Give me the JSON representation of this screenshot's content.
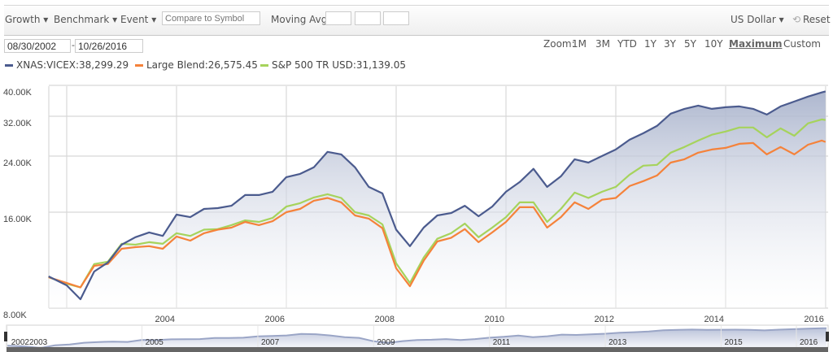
{
  "toolbar": {
    "growth": "Growth ▾",
    "benchmark": "Benchmark ▾",
    "event": "Event ▾",
    "compare_placeholder": "Compare to Symbol",
    "moving_avg": "Moving Avg",
    "currency": "US Dollar ▾",
    "reset": "Reset"
  },
  "dates": {
    "start": "08/30/2002",
    "separator": "-",
    "end": "10/26/2016"
  },
  "zoom": {
    "label": "Zoom:",
    "options": [
      "1M",
      "3M",
      "YTD",
      "1Y",
      "3Y",
      "5Y",
      "10Y",
      "Maximum",
      "Custom"
    ],
    "active": "Maximum"
  },
  "legend": [
    {
      "label": "XNAS:VICEX:38,299.29",
      "color": "#4b5b8e"
    },
    {
      "label": "Large Blend:26,575.45",
      "color": "#f5823a"
    },
    {
      "label": "S&P 500 TR USD:31,139.05",
      "color": "#a6d35c"
    }
  ],
  "chart_data": {
    "type": "line",
    "title": "",
    "xlabel": "",
    "ylabel": "",
    "yscale": "log",
    "ylim": [
      8000,
      40000
    ],
    "yticks": [
      8000,
      16000,
      24000,
      32000,
      40000
    ],
    "ytick_labels": [
      "8.00K",
      "16.00K",
      "24.00K",
      "32.00K",
      "40.00K"
    ],
    "xlim": [
      2002.66,
      2016.82
    ],
    "xticks": [
      2005,
      2007,
      2009,
      2011,
      2013,
      2015,
      2016.82
    ],
    "xtick_labels": [
      "2004",
      "2006",
      "2008",
      "2010",
      "2012",
      "2014",
      "2016"
    ],
    "grid": true,
    "x": [
      2002.67,
      2003.0,
      2003.25,
      2003.5,
      2003.75,
      2004.0,
      2004.25,
      2004.5,
      2004.75,
      2005.0,
      2005.25,
      2005.5,
      2005.75,
      2006.0,
      2006.25,
      2006.5,
      2006.75,
      2007.0,
      2007.25,
      2007.5,
      2007.75,
      2008.0,
      2008.25,
      2008.5,
      2008.75,
      2009.0,
      2009.25,
      2009.5,
      2009.75,
      2010.0,
      2010.25,
      2010.5,
      2010.75,
      2011.0,
      2011.25,
      2011.5,
      2011.75,
      2012.0,
      2012.25,
      2012.5,
      2012.75,
      2013.0,
      2013.25,
      2013.5,
      2013.75,
      2014.0,
      2014.25,
      2014.5,
      2014.75,
      2015.0,
      2015.25,
      2015.5,
      2015.75,
      2016.0,
      2016.25,
      2016.5,
      2016.75,
      2016.82
    ],
    "series": [
      {
        "name": "XNAS:VICEX",
        "color": "#4b5b8e",
        "area": true,
        "values": [
          10060,
          9430,
          8530,
          10420,
          11120,
          12650,
          13350,
          13820,
          13480,
          15720,
          15440,
          16380,
          16480,
          16760,
          18110,
          18110,
          18540,
          20610,
          21100,
          22130,
          24740,
          24290,
          22130,
          19210,
          18330,
          14100,
          12520,
          14310,
          15630,
          15900,
          16760,
          15540,
          16660,
          18540,
          19900,
          21880,
          19210,
          20730,
          23450,
          22900,
          24010,
          25170,
          27010,
          28300,
          29840,
          32600,
          33750,
          34550,
          33750,
          34150,
          34350,
          33750,
          32400,
          34350,
          35600,
          36880,
          38000,
          38299.29
        ]
      },
      {
        "name": "Large Blend",
        "color": "#f5823a",
        "area": false,
        "values": [
          10000,
          9590,
          9290,
          10860,
          11000,
          12280,
          12430,
          12520,
          12280,
          13420,
          13030,
          13740,
          14100,
          14310,
          14910,
          14570,
          14990,
          16000,
          16380,
          17380,
          17730,
          17180,
          15630,
          15270,
          14250,
          10670,
          9370,
          11260,
          12950,
          13290,
          14160,
          12880,
          13820,
          14910,
          16580,
          16580,
          14310,
          15440,
          17180,
          16380,
          17500,
          17730,
          19320,
          20020,
          20850,
          22900,
          23450,
          24590,
          25170,
          25470,
          26220,
          26380,
          24290,
          25630,
          24290,
          26060,
          26850,
          26575.45
        ]
      },
      {
        "name": "S&P 500 TR USD",
        "color": "#a6d35c",
        "area": false,
        "values": [
          10000,
          9540,
          9290,
          11000,
          11190,
          12730,
          12650,
          12880,
          12730,
          13740,
          13480,
          14100,
          14160,
          14570,
          15080,
          14910,
          15350,
          16660,
          17080,
          17790,
          18220,
          17730,
          16000,
          15630,
          14650,
          11060,
          9590,
          11520,
          13200,
          13740,
          14740,
          13350,
          14310,
          15440,
          17180,
          17180,
          14910,
          16380,
          18430,
          17730,
          18540,
          19210,
          20970,
          22390,
          22520,
          24590,
          25630,
          26850,
          28000,
          28650,
          29500,
          29500,
          27490,
          29320,
          27800,
          30400,
          31270,
          31139.05
        ]
      }
    ],
    "navigator": {
      "series": "XNAS:VICEX",
      "labels": [
        {
          "text": "20022003",
          "x": 2002.67
        },
        {
          "text": "2005",
          "x": 2005.0
        },
        {
          "text": "2007",
          "x": 2007.0
        },
        {
          "text": "2009",
          "x": 2009.0
        },
        {
          "text": "2011",
          "x": 2011.0
        },
        {
          "text": "2013",
          "x": 2013.0
        },
        {
          "text": "2015",
          "x": 2015.0
        },
        {
          "text": "2016",
          "x": 2016.3
        }
      ]
    }
  }
}
